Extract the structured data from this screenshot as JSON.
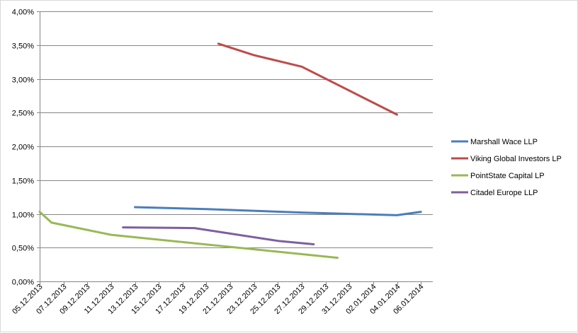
{
  "chart_data": {
    "type": "line",
    "title": "",
    "xlabel": "",
    "ylabel": "",
    "ylim": [
      0,
      0.04
    ],
    "xlim": [
      "2013-12-05",
      "2014-01-07"
    ],
    "x_tick_labels": [
      "05.12.2013",
      "07.12.2013",
      "09.12.2013",
      "11.12.2013",
      "13.12.2013",
      "15.12.2013",
      "17.12.2013",
      "19.12.2013",
      "21.12.2013",
      "23.12.2013",
      "25.12.2013",
      "27.12.2013",
      "29.12.2013",
      "31.12.2013",
      "02.01.2014",
      "04.01.2014",
      "06.01.2014"
    ],
    "y_tick_labels": [
      "0,00%",
      "0,50%",
      "1,00%",
      "1,50%",
      "2,00%",
      "2,50%",
      "3,00%",
      "3,50%",
      "4,00%"
    ],
    "grid": "horizontal",
    "legend_position": "right",
    "series": [
      {
        "name": "Marshall Wace LLP",
        "color": "#4a7ebb",
        "points": [
          {
            "x": "2013-12-13",
            "y": 0.011
          },
          {
            "x": "2013-12-19",
            "y": 0.0107
          },
          {
            "x": "2013-12-27",
            "y": 0.0102
          },
          {
            "x": "2014-01-04",
            "y": 0.0098
          },
          {
            "x": "2014-01-06",
            "y": 0.0103
          }
        ]
      },
      {
        "name": "Viking Global Investors LP",
        "color": "#be4b48",
        "points": [
          {
            "x": "2013-12-20",
            "y": 0.0352
          },
          {
            "x": "2013-12-23",
            "y": 0.0335
          },
          {
            "x": "2013-12-27",
            "y": 0.0318
          },
          {
            "x": "2014-01-04",
            "y": 0.0247
          }
        ]
      },
      {
        "name": "PointState Capital LP",
        "color": "#98b954",
        "points": [
          {
            "x": "2013-12-05",
            "y": 0.0103
          },
          {
            "x": "2013-12-06",
            "y": 0.0087
          },
          {
            "x": "2013-12-11",
            "y": 0.0069
          },
          {
            "x": "2013-12-30",
            "y": 0.0035
          }
        ]
      },
      {
        "name": "Citadel Europe LLP",
        "color": "#7d5fa0",
        "points": [
          {
            "x": "2013-12-12",
            "y": 0.008
          },
          {
            "x": "2013-12-18",
            "y": 0.0079
          },
          {
            "x": "2013-12-25",
            "y": 0.006
          },
          {
            "x": "2013-12-28",
            "y": 0.0055
          }
        ]
      }
    ]
  }
}
